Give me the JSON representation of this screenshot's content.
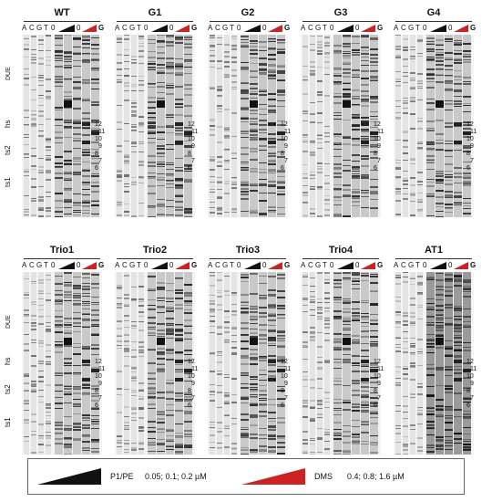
{
  "lane_labels": [
    "A",
    "C",
    "G",
    "T",
    "0"
  ],
  "zero_label": "0",
  "g_label": "G",
  "ramp_colors": {
    "pe": "#111111",
    "dms": "#cc2222"
  },
  "panels": [
    {
      "title": "WT"
    },
    {
      "title": "G1"
    },
    {
      "title": "G2"
    },
    {
      "title": "G3"
    },
    {
      "title": "G4"
    },
    {
      "title": "Trio1"
    },
    {
      "title": "Trio2"
    },
    {
      "title": "Trio3"
    },
    {
      "title": "Trio4"
    },
    {
      "title": "AT1"
    }
  ],
  "side_labels": {
    "due": "DUE",
    "hs": "hs",
    "ts2": "ts2",
    "ts1": "ts1"
  },
  "nucleotide_marks": [
    "12",
    "11",
    "10",
    "9",
    "8",
    "7",
    "6"
  ],
  "legend": {
    "pe_label": "P1/PE",
    "pe_conc": "0.05; 0.1; 0.2 µM",
    "dms_label": "DMS",
    "dms_conc": "0.4; 0.8; 1.6 µM"
  }
}
